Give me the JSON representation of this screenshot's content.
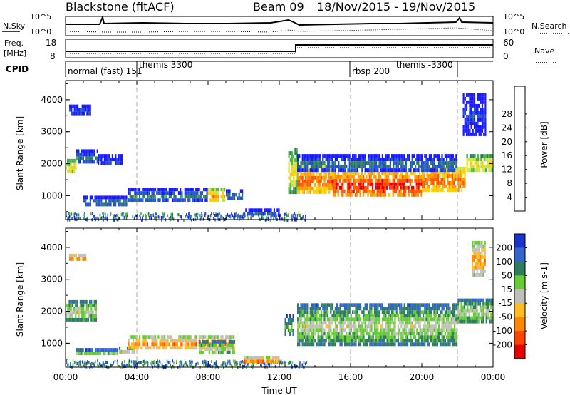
{
  "header": {
    "station": "Blackstone",
    "method": "(fitACF)",
    "beam_label": "Beam 09",
    "date_range": "18/Nov/2015 - 19/Nov/2015"
  },
  "strip_nsky": {
    "left_label": "N.Sky",
    "right_label": "N.Search",
    "top_tick": "10^5",
    "bottom_tick": "10^0"
  },
  "strip_freq": {
    "left_label_1": "Freq.",
    "left_label_2": "[MHz]",
    "right_label": "Nave",
    "left_ticks": [
      "18",
      "8"
    ],
    "right_ticks": [
      "60",
      "0"
    ]
  },
  "strip_cpid": {
    "label": "CPID",
    "entries": [
      "normal (fast) 151",
      "themis 3300",
      "rbsp 200",
      "themis -3300"
    ]
  },
  "chart_data": [
    {
      "type": "heatmap",
      "name": "power",
      "ylabel": "Slant Range [km]",
      "ylim": [
        250,
        4600
      ],
      "yticks": [
        "1000",
        "2000",
        "3000",
        "4000"
      ],
      "xlim_hours": [
        0,
        24
      ],
      "colorbar": {
        "label": "Power [dB]",
        "ticks": [
          "4",
          "8",
          "12",
          "16",
          "20",
          "24",
          "28"
        ],
        "colors": [
          "#1a1aff",
          "#2255cc",
          "#2e7d5e",
          "#4db34d",
          "#c8e64a",
          "#ffcc00",
          "#ff9900",
          "#ff5500",
          "#e60000"
        ]
      },
      "regions": [
        {
          "t": [
            0.0,
            0.6
          ],
          "r": [
            1750,
            2150
          ],
          "level": 5
        },
        {
          "t": [
            0.6,
            1.8
          ],
          "r": [
            2000,
            2450
          ],
          "level": 2
        },
        {
          "t": [
            1.8,
            3.2
          ],
          "r": [
            2000,
            2300
          ],
          "level": 1
        },
        {
          "t": [
            0.2,
            1.4
          ],
          "r": [
            3550,
            3850
          ],
          "level": 1
        },
        {
          "t": [
            1.0,
            3.5
          ],
          "r": [
            700,
            1000
          ],
          "level": 2
        },
        {
          "t": [
            3.5,
            8.0
          ],
          "r": [
            800,
            1250
          ],
          "level": 2
        },
        {
          "t": [
            8.0,
            9.0
          ],
          "r": [
            850,
            1250
          ],
          "level": 6
        },
        {
          "t": [
            9.0,
            10.0
          ],
          "r": [
            850,
            1200
          ],
          "level": 2
        },
        {
          "t": [
            10.0,
            12.0
          ],
          "r": [
            400,
            600
          ],
          "level": 1
        },
        {
          "t": [
            12.5,
            13.0
          ],
          "r": [
            1000,
            2500
          ],
          "level": 5
        },
        {
          "t": [
            13.0,
            15.0
          ],
          "r": [
            1100,
            1950
          ],
          "level": 7
        },
        {
          "t": [
            15.0,
            20.0
          ],
          "r": [
            1000,
            1750
          ],
          "level": 8
        },
        {
          "t": [
            20.0,
            22.5
          ],
          "r": [
            1100,
            1900
          ],
          "level": 7
        },
        {
          "t": [
            22.5,
            24.0
          ],
          "r": [
            1700,
            2300
          ],
          "level": 5
        },
        {
          "t": [
            13.0,
            22.0
          ],
          "r": [
            1750,
            2300
          ],
          "level": 2
        },
        {
          "t": [
            22.3,
            23.6
          ],
          "r": [
            2900,
            4200
          ],
          "level": 1
        }
      ]
    },
    {
      "type": "heatmap",
      "name": "velocity",
      "ylabel": "Slant Range [km]",
      "ylim": [
        250,
        4600
      ],
      "yticks": [
        "1000",
        "2000",
        "3000",
        "4000"
      ],
      "xlabel": "Time UT",
      "xticks": [
        "00:00",
        "04:00",
        "08:00",
        "12:00",
        "16:00",
        "20:00",
        "00:00"
      ],
      "colorbar": {
        "label": "Velocity [m s-1]",
        "ticks": [
          "200",
          "100",
          "50",
          "15",
          "-15",
          "-50",
          "-100",
          "-200"
        ],
        "colors": [
          "#1a33cc",
          "#3366cc",
          "#2e7d5e",
          "#66cc33",
          "#c0c0b8",
          "#ffbb22",
          "#ff8800",
          "#ff4400",
          "#e60000"
        ]
      },
      "regions": [
        {
          "t": [
            0.0,
            1.8
          ],
          "r": [
            1650,
            2350
          ],
          "level": 4
        },
        {
          "t": [
            0.2,
            1.2
          ],
          "r": [
            3600,
            3800
          ],
          "level": 6
        },
        {
          "t": [
            0.5,
            3.0
          ],
          "r": [
            600,
            850
          ],
          "level": 3
        },
        {
          "t": [
            3.0,
            4.0
          ],
          "r": [
            700,
            900
          ],
          "level": 4
        },
        {
          "t": [
            3.5,
            9.5
          ],
          "r": [
            800,
            1250
          ],
          "level": 6
        },
        {
          "t": [
            7.5,
            9.5
          ],
          "r": [
            650,
            1100
          ],
          "level": 4
        },
        {
          "t": [
            10.0,
            12.0
          ],
          "r": [
            400,
            600
          ],
          "level": 6
        },
        {
          "t": [
            12.3,
            12.8
          ],
          "r": [
            1200,
            1900
          ],
          "level": 3
        },
        {
          "t": [
            13.0,
            22.0
          ],
          "r": [
            900,
            2250
          ],
          "level": 4
        },
        {
          "t": [
            22.0,
            24.0
          ],
          "r": [
            1600,
            2400
          ],
          "level": 4
        },
        {
          "t": [
            22.8,
            23.6
          ],
          "r": [
            3100,
            4200
          ],
          "level": 6
        }
      ]
    }
  ]
}
